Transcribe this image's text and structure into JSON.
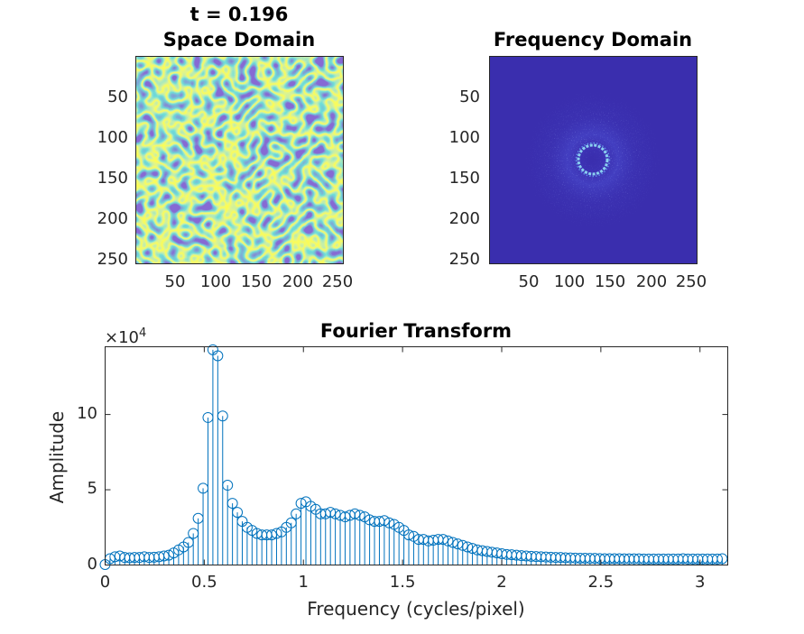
{
  "chart_data": [
    {
      "type": "heatmap",
      "title": "Space Domain",
      "supertitle": "t = 0.196",
      "colormap": "parula",
      "pattern": "labyrinthine stripes",
      "xticks": [
        "50",
        "100",
        "150",
        "200",
        "250"
      ],
      "yticks": [
        "50",
        "100",
        "150",
        "200",
        "250"
      ],
      "xlim": [
        1,
        256
      ],
      "ylim": [
        1,
        256
      ],
      "colors": {
        "low": "#3e26a8",
        "mid": "#2bbdb0",
        "high": "#f9fb15"
      }
    },
    {
      "type": "heatmap",
      "title": "Frequency Domain",
      "colormap": "parula",
      "pattern": "bright ring at center on dark background",
      "xticks": [
        "50",
        "100",
        "150",
        "200",
        "250"
      ],
      "yticks": [
        "50",
        "100",
        "150",
        "200",
        "250"
      ],
      "xlim": [
        1,
        256
      ],
      "ylim": [
        1,
        256
      ],
      "colors": {
        "background": "#3a2eae",
        "ring": "#8ad0f0"
      }
    },
    {
      "type": "stem",
      "title": "Fourier Transform",
      "xlabel": "Frequency (cycles/pixel)",
      "ylabel": "Amplitude",
      "yexponent_base": "×10",
      "yexponent_power": "4",
      "xlim": [
        0,
        3.14
      ],
      "ylim": [
        0,
        14.5
      ],
      "xticks": [
        "0",
        "0.5",
        "1",
        "1.5",
        "2",
        "2.5",
        "3"
      ],
      "yticks": [
        "0",
        "5",
        "10"
      ],
      "color": "#0072bd",
      "x_step": 0.0247,
      "y": [
        0.03,
        0.42,
        0.55,
        0.6,
        0.5,
        0.48,
        0.5,
        0.5,
        0.55,
        0.5,
        0.52,
        0.55,
        0.6,
        0.65,
        0.8,
        1.0,
        1.2,
        1.5,
        2.1,
        3.1,
        5.1,
        9.8,
        14.3,
        13.9,
        9.9,
        5.3,
        4.1,
        3.5,
        2.9,
        2.5,
        2.3,
        2.1,
        2.0,
        2.0,
        2.0,
        2.1,
        2.2,
        2.5,
        2.8,
        3.4,
        4.1,
        4.2,
        3.9,
        3.7,
        3.4,
        3.4,
        3.5,
        3.4,
        3.3,
        3.2,
        3.3,
        3.4,
        3.3,
        3.2,
        3.0,
        2.9,
        2.9,
        2.95,
        2.8,
        2.7,
        2.5,
        2.3,
        2.0,
        1.9,
        1.7,
        1.7,
        1.6,
        1.65,
        1.7,
        1.7,
        1.6,
        1.5,
        1.4,
        1.3,
        1.2,
        1.1,
        1.0,
        0.95,
        0.9,
        0.85,
        0.8,
        0.75,
        0.7,
        0.68,
        0.65,
        0.62,
        0.6,
        0.58,
        0.56,
        0.55,
        0.53,
        0.52,
        0.5,
        0.5,
        0.48,
        0.47,
        0.46,
        0.45,
        0.45,
        0.44,
        0.44,
        0.43,
        0.42,
        0.42,
        0.42,
        0.42,
        0.41,
        0.41,
        0.41,
        0.41,
        0.4,
        0.4,
        0.4,
        0.4,
        0.4,
        0.4,
        0.4,
        0.4,
        0.42,
        0.4,
        0.4,
        0.4,
        0.4,
        0.4,
        0.4,
        0.4,
        0.42
      ]
    }
  ]
}
